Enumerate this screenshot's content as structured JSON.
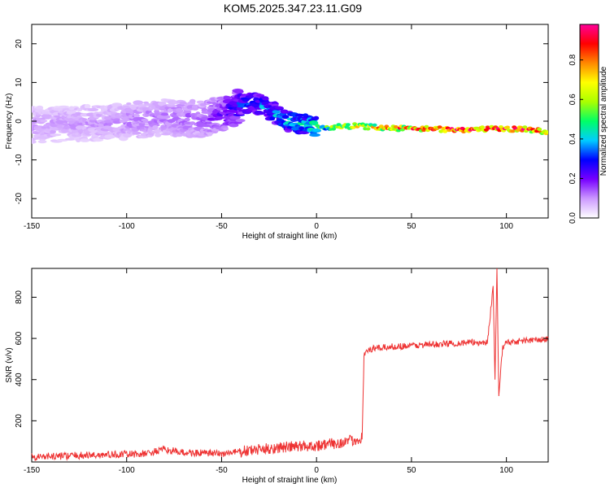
{
  "title": "KOM5.2025.347.23.11.G09",
  "chart_data": [
    {
      "type": "heatmap",
      "xlabel": "Height of straight line (km)",
      "ylabel": "Frequency (Hz)",
      "xlim": [
        -150,
        122
      ],
      "ylim": [
        -25,
        25
      ],
      "x_ticks": [
        -150,
        -100,
        -50,
        0,
        50,
        100
      ],
      "y_ticks": [
        -20,
        -10,
        0,
        10,
        20
      ],
      "colorbar": {
        "label": "Normalized spectral amplitude",
        "range": [
          0,
          0.98
        ],
        "ticks": [
          0.0,
          0.2,
          0.4,
          0.6,
          0.8
        ],
        "colormap": [
          "#ffffff",
          "#cc99ff",
          "#7700ff",
          "#0000ff",
          "#00ccff",
          "#00ff66",
          "#aaff00",
          "#ffff00",
          "#ff8800",
          "#ff0000",
          "#ff0099"
        ]
      },
      "ridge": {
        "x": [
          -150,
          -120,
          -100,
          -80,
          -60,
          -50,
          -40,
          -33,
          -25,
          -15,
          -5,
          0,
          10,
          20,
          40,
          60,
          80,
          95,
          110,
          122
        ],
        "y": [
          -1,
          -0.5,
          0,
          1,
          0.5,
          2,
          4,
          5,
          3,
          0,
          -1,
          -1.5,
          -1.5,
          -1.2,
          -1.8,
          -2,
          -2.2,
          -2,
          -2,
          -2.8
        ],
        "amplitude": [
          0.1,
          0.1,
          0.12,
          0.13,
          0.15,
          0.2,
          0.3,
          0.35,
          0.35,
          0.4,
          0.45,
          0.5,
          0.6,
          0.7,
          0.8,
          0.85,
          0.9,
          0.9,
          0.9,
          0.85
        ]
      },
      "grid": false
    },
    {
      "type": "line",
      "xlabel": "Height of straight line (km)",
      "ylabel": "SNR (v/v)",
      "xlim": [
        -150,
        122
      ],
      "ylim": [
        0,
        940
      ],
      "x_ticks": [
        -150,
        -100,
        -50,
        0,
        50,
        100
      ],
      "y_ticks": [
        200,
        400,
        600,
        800
      ],
      "line_color": "#ee3333",
      "series": [
        {
          "x": [
            -150,
            -130,
            -110,
            -90,
            -80,
            -70,
            -50,
            -40,
            -30,
            -20,
            -10,
            0,
            10,
            20,
            24,
            25,
            27,
            30,
            40,
            50,
            60,
            70,
            80,
            90,
            93,
            94,
            95,
            96,
            98,
            100,
            110,
            122
          ],
          "values": [
            25,
            30,
            35,
            40,
            60,
            45,
            40,
            50,
            60,
            70,
            75,
            80,
            90,
            105,
            120,
            520,
            540,
            550,
            560,
            565,
            570,
            575,
            580,
            580,
            850,
            400,
            940,
            320,
            560,
            580,
            590,
            595
          ]
        }
      ],
      "grid": false
    }
  ]
}
